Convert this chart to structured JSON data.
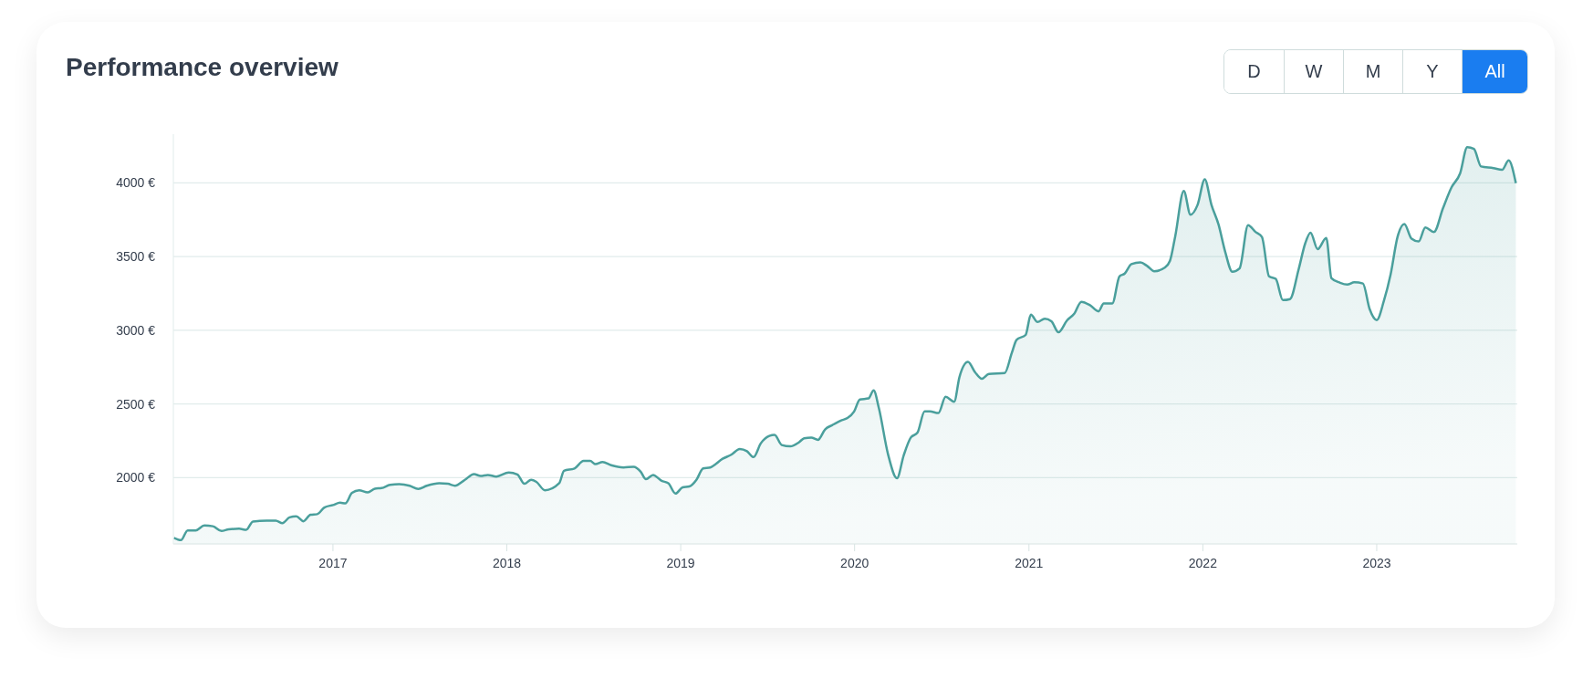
{
  "chart_data": {
    "type": "area",
    "title": "Performance overview",
    "annotations": [
      "D",
      "W",
      "M",
      "Y",
      "All"
    ],
    "x": [
      "2016-02-02",
      "2016-02-17",
      "2016-03-02",
      "2016-03-19",
      "2016-04-06",
      "2016-04-24",
      "2016-05-12",
      "2016-05-27",
      "2016-06-18",
      "2016-07-03",
      "2016-07-17",
      "2016-08-15",
      "2016-09-03",
      "2016-09-17",
      "2016-10-02",
      "2016-10-16",
      "2016-10-31",
      "2016-11-15",
      "2016-11-29",
      "2016-12-14",
      "2017-01-01",
      "2017-01-16",
      "2017-01-27",
      "2017-02-10",
      "2017-02-25",
      "2017-03-15",
      "2017-03-30",
      "2017-04-13",
      "2017-05-01",
      "2017-05-20",
      "2017-06-11",
      "2017-06-29",
      "2017-07-17",
      "2017-08-12",
      "2017-08-30",
      "2017-09-14",
      "2017-10-05",
      "2017-10-24",
      "2017-11-07",
      "2017-11-22",
      "2017-12-10",
      "2018-01-05",
      "2018-01-23",
      "2018-02-07",
      "2018-02-21",
      "2018-03-04",
      "2018-03-22",
      "2018-04-21",
      "2018-05-01",
      "2018-05-23",
      "2018-06-11",
      "2018-06-25",
      "2018-07-06",
      "2018-07-21",
      "2018-08-08",
      "2018-09-03",
      "2018-09-24",
      "2018-10-09",
      "2018-10-20",
      "2018-11-04",
      "2018-11-22",
      "2018-12-06",
      "2018-12-21",
      "2019-01-05",
      "2019-01-19",
      "2019-02-03",
      "2019-02-17",
      "2019-03-04",
      "2019-03-30",
      "2019-04-17",
      "2019-05-05",
      "2019-05-20",
      "2019-06-03",
      "2019-06-18",
      "2019-07-06",
      "2019-07-17",
      "2019-08-01",
      "2019-08-19",
      "2019-09-06",
      "2019-09-17",
      "2019-10-02",
      "2019-10-16",
      "2019-10-31",
      "2019-11-15",
      "2019-12-03",
      "2019-12-17",
      "2019-12-31",
      "2020-01-12",
      "2020-01-30",
      "2020-02-10",
      "2020-02-21",
      "2020-03-11",
      "2020-03-30",
      "2020-04-13",
      "2020-04-28",
      "2020-05-12",
      "2020-05-27",
      "2020-06-07",
      "2020-06-25",
      "2020-07-10",
      "2020-07-28",
      "2020-08-08",
      "2020-08-26",
      "2020-09-10",
      "2020-09-24",
      "2020-10-09",
      "2020-11-11",
      "2020-11-26",
      "2020-12-06",
      "2020-12-25",
      "2021-01-05",
      "2021-01-19",
      "2021-02-03",
      "2021-02-17",
      "2021-03-04",
      "2021-03-22",
      "2021-04-06",
      "2021-04-21",
      "2021-05-09",
      "2021-05-27",
      "2021-06-07",
      "2021-06-25",
      "2021-07-10",
      "2021-07-21",
      "2021-08-04",
      "2021-08-23",
      "2021-09-06",
      "2021-09-21",
      "2021-10-13",
      "2021-10-24",
      "2021-11-04",
      "2021-11-22",
      "2021-12-06",
      "2021-12-21",
      "2022-01-05",
      "2022-01-19",
      "2022-02-03",
      "2022-02-17",
      "2022-03-04",
      "2022-03-19",
      "2022-04-06",
      "2022-04-21",
      "2022-05-05",
      "2022-05-20",
      "2022-06-03",
      "2022-06-18",
      "2022-07-03",
      "2022-07-21",
      "2022-08-04",
      "2022-08-15",
      "2022-08-30",
      "2022-09-17",
      "2022-09-28",
      "2022-10-16",
      "2022-10-31",
      "2022-11-15",
      "2022-12-03",
      "2022-12-17",
      "2023-01-01",
      "2023-01-16",
      "2023-01-30",
      "2023-02-14",
      "2023-02-28",
      "2023-03-15",
      "2023-03-30",
      "2023-04-13",
      "2023-05-01",
      "2023-05-20",
      "2023-06-07",
      "2023-06-25",
      "2023-07-10",
      "2023-07-24",
      "2023-08-08",
      "2023-09-03",
      "2023-09-21",
      "2023-10-05",
      "2023-10-20"
    ],
    "series": [
      {
        "color": "#4a9f9c",
        "values": [
          1591,
          1576,
          1642,
          1642,
          1675,
          1670,
          1638,
          1649,
          1653,
          1646,
          1702,
          1708,
          1708,
          1691,
          1730,
          1737,
          1704,
          1748,
          1752,
          1797,
          1814,
          1830,
          1825,
          1896,
          1914,
          1900,
          1925,
          1929,
          1951,
          1956,
          1945,
          1923,
          1945,
          1962,
          1958,
          1945,
          1985,
          2024,
          2011,
          2018,
          2007,
          2035,
          2022,
          1958,
          1985,
          1971,
          1914,
          1962,
          2046,
          2062,
          2113,
          2113,
          2091,
          2106,
          2084,
          2069,
          2073,
          2040,
          1989,
          2018,
          1978,
          1962,
          1892,
          1934,
          1940,
          1985,
          2062,
          2069,
          2128,
          2155,
          2194,
          2179,
          2139,
          2232,
          2283,
          2290,
          2221,
          2212,
          2239,
          2267,
          2272,
          2256,
          2327,
          2356,
          2387,
          2404,
          2449,
          2530,
          2537,
          2592,
          2471,
          2161,
          1996,
          2150,
          2272,
          2305,
          2449,
          2449,
          2438,
          2548,
          2515,
          2681,
          2785,
          2714,
          2670,
          2703,
          2709,
          2846,
          2935,
          2968,
          3105,
          3056,
          3078,
          3061,
          2986,
          3067,
          3112,
          3193,
          3170,
          3128,
          3182,
          3182,
          3365,
          3384,
          3448,
          3460,
          3436,
          3400,
          3424,
          3471,
          3637,
          3945,
          3784,
          3851,
          4024,
          3851,
          3716,
          3531,
          3396,
          3419,
          3713,
          3668,
          3633,
          3365,
          3348,
          3204,
          3211,
          3412,
          3590,
          3661,
          3550,
          3626,
          3353,
          3322,
          3310,
          3325,
          3317,
          3144,
          3069,
          3199,
          3377,
          3637,
          3720,
          3621,
          3602,
          3697,
          3666,
          3827,
          3969,
          4064,
          4242,
          4230,
          4111,
          4100,
          4088,
          4152,
          3998
        ]
      }
    ],
    "xlim": [
      "2016-02-01",
      "2023-10-23"
    ],
    "xticks": [
      "2017",
      "2018",
      "2019",
      "2020",
      "2021",
      "2022",
      "2023"
    ],
    "ylim": [
      1550,
      4330
    ],
    "yticks": [
      {
        "value": 2000,
        "label": "2000 €"
      },
      {
        "value": 2500,
        "label": "2500 €"
      },
      {
        "value": 3000,
        "label": "3000 €"
      },
      {
        "value": 3500,
        "label": "3500 €"
      },
      {
        "value": 4000,
        "label": "4000 €"
      }
    ],
    "grid": "y",
    "legend": false,
    "marker": "none",
    "line_style": "solid"
  }
}
